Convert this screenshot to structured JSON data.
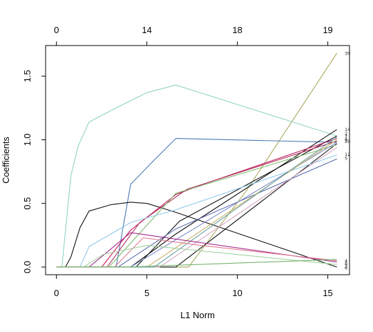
{
  "chart_data": {
    "type": "line",
    "title": "",
    "xlabel": "L1 Norm",
    "ylabel": "Coefficients",
    "xlim": [
      -0.6,
      16.2
    ],
    "ylim": [
      -0.06,
      1.74
    ],
    "x_ticks": [
      0,
      5,
      10,
      15
    ],
    "y_ticks": [
      0.0,
      0.5,
      1.0,
      1.5
    ],
    "y_tick_labels": [
      "0.0",
      "0.5",
      "1.0",
      "1.5"
    ],
    "top_axis": {
      "ticks": [
        0,
        5,
        10,
        15
      ],
      "labels": [
        "0",
        "14",
        "18",
        "19"
      ]
    },
    "grid": false,
    "legend": "none",
    "series": [
      {
        "label": "30",
        "color": "#a9a85f",
        "points": [
          [
            7.3,
            0
          ],
          [
            10.5,
            0.6
          ],
          [
            15.5,
            1.68
          ]
        ]
      },
      {
        "label": "",
        "color": "#8fd3c8",
        "points": [
          [
            0.3,
            0
          ],
          [
            0.8,
            0.72
          ],
          [
            1.2,
            0.95
          ],
          [
            1.8,
            1.14
          ],
          [
            3.3,
            1.25
          ],
          [
            5,
            1.37
          ],
          [
            6.6,
            1.43
          ],
          [
            15.5,
            1.03
          ]
        ]
      },
      {
        "label": "",
        "color": "#4a78b5",
        "points": [
          [
            3.3,
            0
          ],
          [
            4.1,
            0.65
          ],
          [
            5.4,
            0.84
          ],
          [
            6.6,
            1.01
          ],
          [
            15.5,
            0.98
          ]
        ]
      },
      {
        "label": "",
        "color": "#111111",
        "points": [
          [
            0.5,
            0
          ],
          [
            0.8,
            0.08
          ],
          [
            1.3,
            0.31
          ],
          [
            1.8,
            0.44
          ],
          [
            3,
            0.49
          ],
          [
            4.1,
            0.51
          ],
          [
            5,
            0.5
          ],
          [
            6.6,
            0.43
          ],
          [
            15.5,
            0
          ]
        ]
      },
      {
        "label": "14",
        "color": "#111111",
        "points": [
          [
            4.1,
            0
          ],
          [
            6.6,
            0.26
          ],
          [
            15.5,
            1.08
          ]
        ]
      },
      {
        "label": "",
        "color": "#111111",
        "points": [
          [
            4.4,
            0
          ],
          [
            6.8,
            0.36
          ],
          [
            15.5,
            1.03
          ]
        ]
      },
      {
        "label": "",
        "color": "#111111",
        "points": [
          [
            6.6,
            0
          ],
          [
            15.5,
            0.97
          ]
        ]
      },
      {
        "label": "",
        "color": "#c2185b",
        "points": [
          [
            2.5,
            0
          ],
          [
            4.1,
            0.29
          ],
          [
            6.6,
            0.57
          ],
          [
            8.1,
            0.65
          ],
          [
            15.5,
            1.01
          ]
        ]
      },
      {
        "label": "",
        "color": "#b0305e",
        "points": [
          [
            2.8,
            0
          ],
          [
            4.6,
            0.35
          ],
          [
            7.2,
            0.61
          ],
          [
            15.5,
            0.99
          ]
        ]
      },
      {
        "label": "",
        "color": "#7cbb6e",
        "points": [
          [
            2.9,
            0
          ],
          [
            6.6,
            0.58
          ],
          [
            15.5,
            0.96
          ]
        ]
      },
      {
        "label": "12",
        "color": "#8fc7e8",
        "points": [
          [
            1.3,
            0
          ],
          [
            1.8,
            0.16
          ],
          [
            4.1,
            0.35
          ],
          [
            6.6,
            0.45
          ],
          [
            15.5,
            0.88
          ]
        ]
      },
      {
        "label": "5",
        "color": "#5a6cae",
        "points": [
          [
            3.4,
            0
          ],
          [
            6.6,
            0.3
          ],
          [
            15.5,
            0.85
          ]
        ]
      },
      {
        "label": "",
        "color": "#7b89c7",
        "points": [
          [
            4.1,
            0
          ],
          [
            15.5,
            0.98
          ]
        ]
      },
      {
        "label": "",
        "color": "#d4a7c1",
        "points": [
          [
            5.7,
            0
          ],
          [
            15.5,
            0.94
          ]
        ]
      },
      {
        "label": "",
        "color": "#c8b06a",
        "points": [
          [
            5,
            0
          ],
          [
            15.5,
            1.0
          ]
        ]
      },
      {
        "label": "",
        "color": "#6aa0a0",
        "points": [
          [
            5.4,
            0
          ],
          [
            15.5,
            1.02
          ]
        ]
      },
      {
        "label": "4",
        "color": "#a82a8f",
        "points": [
          [
            1.8,
            0
          ],
          [
            4.1,
            0.27
          ],
          [
            6.6,
            0.22
          ],
          [
            15.5,
            0.04
          ]
        ]
      },
      {
        "label": "",
        "color": "#e07a8f",
        "points": [
          [
            3.2,
            0
          ],
          [
            4.8,
            0.23
          ],
          [
            8,
            0.17
          ],
          [
            15.5,
            0.05
          ]
        ]
      },
      {
        "label": "",
        "color": "#9fd19a",
        "points": [
          [
            1.5,
            0
          ],
          [
            2.6,
            0.1
          ],
          [
            5,
            0.17
          ],
          [
            15.5,
            0.02
          ]
        ]
      },
      {
        "label": "",
        "color": "#74b36b",
        "points": [
          [
            3.9,
            0
          ],
          [
            15.5,
            0.06
          ]
        ]
      }
    ],
    "end_labels": [
      "30",
      "14",
      "2",
      "7",
      "1",
      "9",
      "20",
      "12",
      "5",
      "4",
      "8",
      "3",
      "6"
    ]
  }
}
